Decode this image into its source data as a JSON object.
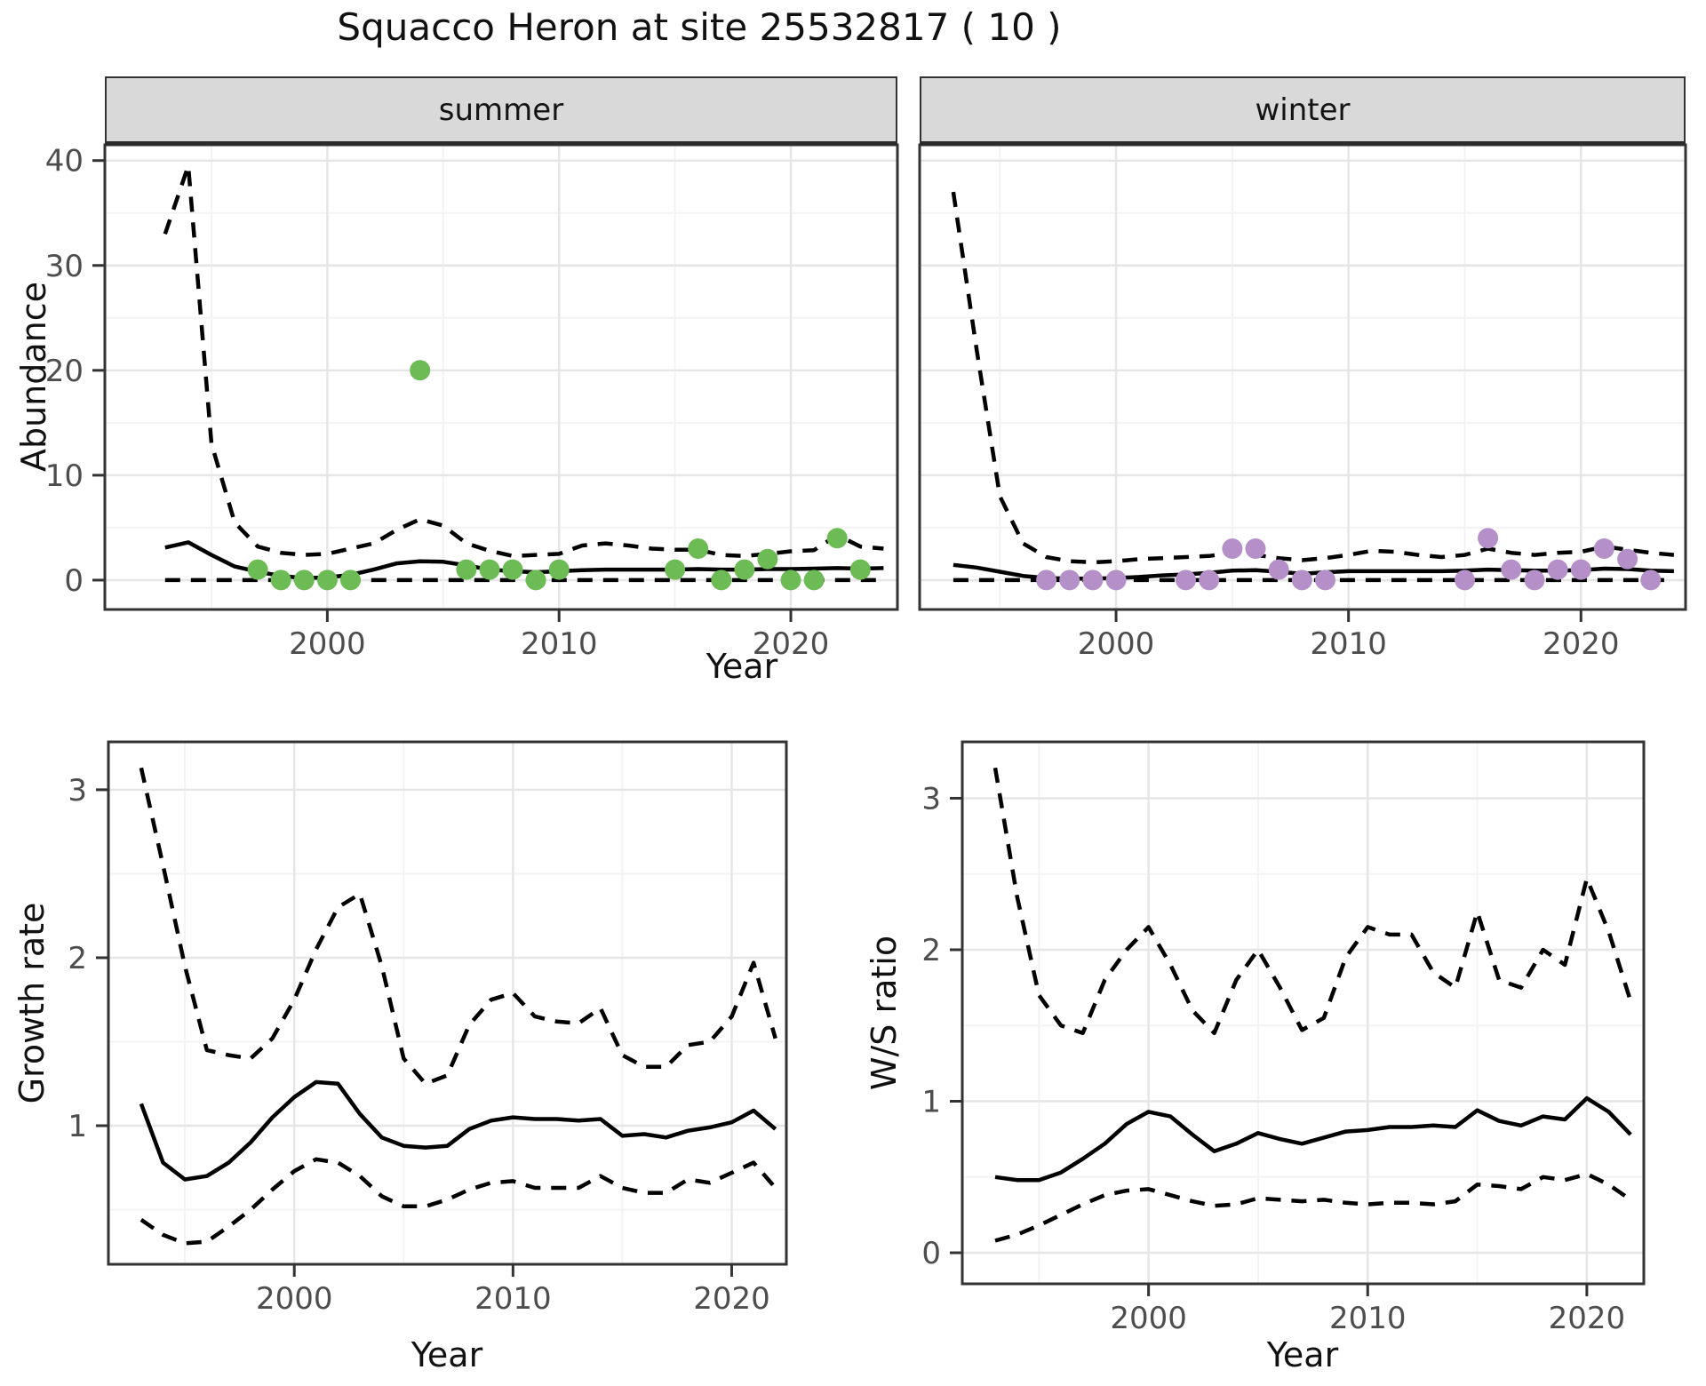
{
  "title": "Squacco Heron at site 25532817 ( 10 )",
  "facets": {
    "summer": "summer",
    "winter": "winter"
  },
  "axis_titles": {
    "abundance": "Abundance",
    "year": "Year",
    "growth_rate": "Growth rate",
    "ws_ratio": "W/S ratio"
  },
  "colors": {
    "summer_points": "#6cbb54",
    "winter_points": "#b58fc8",
    "line": "#000000",
    "grid_major": "#e6e6e6",
    "grid_minor": "#f3f3f3",
    "panel_border": "#333333",
    "strip_fill": "#d9d9d9",
    "tick_text": "#4d4d4d"
  },
  "chart_data": [
    {
      "id": "abundance_summer",
      "type": "line",
      "facet": "summer",
      "xlabel": "Year",
      "ylabel": "Abundance",
      "xlim": [
        1990.4,
        2024.6
      ],
      "ylim": [
        -2.8,
        41.5
      ],
      "x_ticks": [
        2000,
        2010,
        2020
      ],
      "x_minor": [
        1995,
        2005,
        2015
      ],
      "y_ticks": [
        0,
        10,
        20,
        30,
        40
      ],
      "y_minor": [
        5,
        15,
        25,
        35
      ],
      "show_y_labels": true,
      "x": [
        1993,
        1994,
        1995,
        1996,
        1997,
        1998,
        1999,
        2000,
        2001,
        2002,
        2003,
        2004,
        2005,
        2006,
        2007,
        2008,
        2009,
        2010,
        2011,
        2012,
        2013,
        2014,
        2015,
        2016,
        2017,
        2018,
        2019,
        2020,
        2021,
        2022,
        2023,
        2024
      ],
      "series": [
        {
          "name": "upper_95ci",
          "style": "dashed",
          "values": [
            33,
            39.5,
            13,
            5.5,
            3.2,
            2.6,
            2.4,
            2.5,
            3.0,
            3.5,
            4.8,
            5.8,
            5.2,
            3.5,
            2.8,
            2.3,
            2.4,
            2.5,
            3.3,
            3.5,
            3.3,
            3.0,
            2.9,
            2.9,
            2.4,
            2.3,
            2.5,
            2.75,
            2.85,
            4.3,
            3.2,
            3.0
          ]
        },
        {
          "name": "median",
          "style": "solid",
          "values": [
            3.1,
            3.6,
            2.4,
            1.3,
            0.8,
            0.4,
            0.2,
            0.25,
            0.5,
            1.0,
            1.6,
            1.8,
            1.75,
            1.4,
            1.0,
            0.85,
            0.75,
            0.85,
            0.95,
            1.0,
            1.0,
            1.0,
            1.0,
            1.05,
            1.0,
            1.0,
            1.05,
            1.05,
            1.1,
            1.15,
            1.1,
            1.15
          ]
        },
        {
          "name": "lower_95ci",
          "style": "dashed",
          "values": [
            0,
            0,
            0,
            0,
            0,
            0,
            0,
            0,
            0,
            0,
            0,
            0,
            0,
            0,
            0,
            0,
            0,
            0,
            0,
            0,
            0,
            0,
            0,
            0,
            0,
            0,
            0,
            0,
            0,
            0,
            0,
            0
          ]
        }
      ],
      "points": {
        "name": "observed_counts",
        "color_key": "summer_points",
        "x": [
          1997,
          1998,
          1999,
          2000,
          2001,
          2004,
          2006,
          2007,
          2008,
          2009,
          2010,
          2015,
          2016,
          2017,
          2018,
          2019,
          2020,
          2021,
          2022,
          2023
        ],
        "y": [
          1,
          0,
          0,
          0,
          0,
          20,
          1,
          1,
          1,
          0,
          1,
          1,
          3,
          0,
          1,
          2,
          0,
          0,
          4,
          1
        ]
      }
    },
    {
      "id": "abundance_winter",
      "type": "line",
      "facet": "winter",
      "xlabel": "Year",
      "ylabel": "Abundance",
      "xlim": [
        1991.55,
        2024.5
      ],
      "ylim": [
        -2.8,
        41.5
      ],
      "x_ticks": [
        2000,
        2010,
        2020
      ],
      "x_minor": [
        1995,
        2005,
        2015
      ],
      "y_ticks": [
        0,
        10,
        20,
        30,
        40
      ],
      "y_minor": [
        5,
        15,
        25,
        35
      ],
      "show_y_labels": false,
      "x": [
        1993,
        1994,
        1995,
        1996,
        1997,
        1998,
        1999,
        2000,
        2001,
        2002,
        2003,
        2004,
        2005,
        2006,
        2007,
        2008,
        2009,
        2010,
        2011,
        2012,
        2013,
        2014,
        2015,
        2016,
        2017,
        2018,
        2019,
        2020,
        2021,
        2022,
        2023,
        2024
      ],
      "series": [
        {
          "name": "upper_95ci",
          "style": "dashed",
          "values": [
            37,
            22,
            8,
            3.5,
            2.2,
            1.8,
            1.7,
            1.8,
            2.0,
            2.1,
            2.2,
            2.3,
            2.6,
            2.4,
            2.1,
            1.9,
            2.1,
            2.4,
            2.8,
            2.7,
            2.4,
            2.2,
            2.4,
            3.0,
            2.6,
            2.4,
            2.6,
            2.7,
            3.2,
            2.9,
            2.6,
            2.4
          ]
        },
        {
          "name": "median",
          "style": "solid",
          "values": [
            1.45,
            1.2,
            0.8,
            0.4,
            0.2,
            0.15,
            0.15,
            0.2,
            0.3,
            0.45,
            0.55,
            0.7,
            0.9,
            0.95,
            0.8,
            0.6,
            0.75,
            0.85,
            0.85,
            0.85,
            0.85,
            0.85,
            0.9,
            1.0,
            0.95,
            0.9,
            0.9,
            0.95,
            1.1,
            1.05,
            0.9,
            0.85
          ]
        },
        {
          "name": "lower_95ci",
          "style": "dashed",
          "values": [
            0,
            0,
            0,
            0,
            0,
            0,
            0,
            0,
            0,
            0,
            0,
            0,
            0,
            0,
            0,
            0,
            0,
            0,
            0,
            0,
            0,
            0,
            0,
            0,
            0,
            0,
            0,
            0,
            0,
            0,
            0,
            0
          ]
        }
      ],
      "points": {
        "name": "observed_counts",
        "color_key": "winter_points",
        "x": [
          1997,
          1998,
          1999,
          2000,
          2003,
          2004,
          2005,
          2006,
          2007,
          2008,
          2009,
          2015,
          2016,
          2017,
          2018,
          2019,
          2020,
          2021,
          2022,
          2023
        ],
        "y": [
          0,
          0,
          0,
          0,
          0,
          0,
          3,
          3,
          1,
          0,
          0,
          0,
          4,
          1,
          0,
          1,
          1,
          3,
          2,
          0
        ]
      }
    },
    {
      "id": "growth",
      "type": "line",
      "facet": null,
      "xlabel": "Year",
      "ylabel": "Growth rate",
      "xlim": [
        1991.5,
        2022.5
      ],
      "ylim": [
        0.175,
        3.285
      ],
      "x_ticks": [
        2000,
        2010,
        2020
      ],
      "x_minor": [
        1995,
        2005,
        2015
      ],
      "y_ticks": [
        1,
        2,
        3
      ],
      "y_minor": [
        0.5,
        1.5,
        2.5
      ],
      "show_y_labels": true,
      "x": [
        1993,
        1994,
        1995,
        1996,
        1997,
        1998,
        1999,
        2000,
        2001,
        2002,
        2003,
        2004,
        2005,
        2006,
        2007,
        2008,
        2009,
        2010,
        2011,
        2012,
        2013,
        2014,
        2015,
        2016,
        2017,
        2018,
        2019,
        2020,
        2021,
        2022
      ],
      "series": [
        {
          "name": "upper_95ci",
          "style": "dashed",
          "values": [
            3.13,
            2.55,
            1.95,
            1.45,
            1.42,
            1.4,
            1.52,
            1.75,
            2.05,
            2.3,
            2.38,
            1.95,
            1.4,
            1.25,
            1.3,
            1.6,
            1.75,
            1.79,
            1.65,
            1.62,
            1.61,
            1.7,
            1.42,
            1.35,
            1.35,
            1.48,
            1.5,
            1.65,
            1.97,
            1.52
          ]
        },
        {
          "name": "median",
          "style": "solid",
          "values": [
            1.13,
            0.78,
            0.68,
            0.7,
            0.78,
            0.9,
            1.05,
            1.17,
            1.26,
            1.25,
            1.07,
            0.93,
            0.88,
            0.87,
            0.88,
            0.98,
            1.03,
            1.05,
            1.04,
            1.04,
            1.03,
            1.04,
            0.94,
            0.95,
            0.93,
            0.97,
            0.99,
            1.02,
            1.09,
            0.98
          ]
        },
        {
          "name": "lower_95ci",
          "style": "dashed",
          "values": [
            0.44,
            0.35,
            0.3,
            0.31,
            0.4,
            0.5,
            0.62,
            0.73,
            0.8,
            0.78,
            0.7,
            0.58,
            0.52,
            0.52,
            0.56,
            0.62,
            0.66,
            0.67,
            0.63,
            0.63,
            0.63,
            0.7,
            0.63,
            0.6,
            0.6,
            0.68,
            0.66,
            0.72,
            0.78,
            0.63
          ]
        }
      ],
      "points": null
    },
    {
      "id": "ws",
      "type": "line",
      "facet": null,
      "xlabel": "Year",
      "ylabel": "W/S ratio",
      "xlim": [
        1991.5,
        2022.6
      ],
      "ylim": [
        -0.205,
        3.372
      ],
      "x_ticks": [
        2000,
        2010,
        2020
      ],
      "x_minor": [
        1995,
        2005,
        2015
      ],
      "y_ticks": [
        0,
        1,
        2,
        3
      ],
      "y_minor": [
        0.5,
        1.5,
        2.5
      ],
      "show_y_labels": true,
      "x": [
        1993,
        1994,
        1995,
        1996,
        1997,
        1998,
        1999,
        2000,
        2001,
        2002,
        2003,
        2004,
        2005,
        2006,
        2007,
        2008,
        2009,
        2010,
        2011,
        2012,
        2013,
        2014,
        2015,
        2016,
        2017,
        2018,
        2019,
        2020,
        2021,
        2022
      ],
      "series": [
        {
          "name": "upper_95ci",
          "style": "dashed",
          "values": [
            3.2,
            2.35,
            1.7,
            1.5,
            1.45,
            1.8,
            2.0,
            2.15,
            1.9,
            1.6,
            1.45,
            1.8,
            2.0,
            1.75,
            1.47,
            1.55,
            1.95,
            2.15,
            2.1,
            2.1,
            1.85,
            1.75,
            2.25,
            1.8,
            1.75,
            2.0,
            1.9,
            2.47,
            2.12,
            1.66
          ]
        },
        {
          "name": "median",
          "style": "solid",
          "values": [
            0.5,
            0.48,
            0.48,
            0.53,
            0.62,
            0.72,
            0.85,
            0.93,
            0.9,
            0.78,
            0.67,
            0.72,
            0.79,
            0.75,
            0.72,
            0.76,
            0.8,
            0.81,
            0.83,
            0.83,
            0.84,
            0.83,
            0.94,
            0.87,
            0.84,
            0.9,
            0.88,
            1.02,
            0.93,
            0.78
          ]
        },
        {
          "name": "lower_95ci",
          "style": "dashed",
          "values": [
            0.08,
            0.12,
            0.18,
            0.25,
            0.32,
            0.38,
            0.41,
            0.42,
            0.38,
            0.34,
            0.31,
            0.32,
            0.36,
            0.35,
            0.34,
            0.35,
            0.33,
            0.32,
            0.33,
            0.33,
            0.32,
            0.34,
            0.45,
            0.44,
            0.42,
            0.5,
            0.48,
            0.52,
            0.45,
            0.35
          ]
        }
      ],
      "points": null
    }
  ]
}
